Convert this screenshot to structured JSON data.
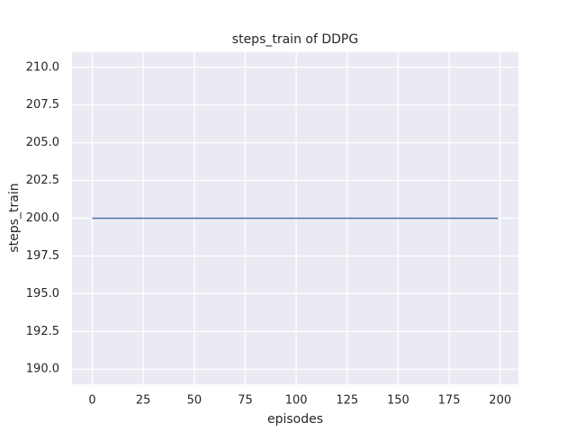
{
  "chart_data": {
    "type": "line",
    "title": "steps_train of DDPG",
    "xlabel": "episodes",
    "ylabel": "steps_train",
    "x": [
      0,
      1,
      2,
      3,
      4,
      5,
      6,
      7,
      8,
      9,
      10,
      11,
      12,
      13,
      14,
      15,
      16,
      17,
      18,
      19,
      20,
      21,
      22,
      23,
      24,
      25,
      26,
      27,
      28,
      29,
      30,
      31,
      32,
      33,
      34,
      35,
      36,
      37,
      38,
      39,
      40,
      41,
      42,
      43,
      44,
      45,
      46,
      47,
      48,
      49,
      50,
      51,
      52,
      53,
      54,
      55,
      56,
      57,
      58,
      59,
      60,
      61,
      62,
      63,
      64,
      65,
      66,
      67,
      68,
      69,
      70,
      71,
      72,
      73,
      74,
      75,
      76,
      77,
      78,
      79,
      80,
      81,
      82,
      83,
      84,
      85,
      86,
      87,
      88,
      89,
      90,
      91,
      92,
      93,
      94,
      95,
      96,
      97,
      98,
      99,
      100,
      101,
      102,
      103,
      104,
      105,
      106,
      107,
      108,
      109,
      110,
      111,
      112,
      113,
      114,
      115,
      116,
      117,
      118,
      119,
      120,
      121,
      122,
      123,
      124,
      125,
      126,
      127,
      128,
      129,
      130,
      131,
      132,
      133,
      134,
      135,
      136,
      137,
      138,
      139,
      140,
      141,
      142,
      143,
      144,
      145,
      146,
      147,
      148,
      149,
      150,
      151,
      152,
      153,
      154,
      155,
      156,
      157,
      158,
      159,
      160,
      161,
      162,
      163,
      164,
      165,
      166,
      167,
      168,
      169,
      170,
      171,
      172,
      173,
      174,
      175,
      176,
      177,
      178,
      179,
      180,
      181,
      182,
      183,
      184,
      185,
      186,
      187,
      188,
      189,
      190,
      191,
      192,
      193,
      194,
      195,
      196,
      197,
      198,
      199
    ],
    "series": [
      {
        "color": "#4c72b0",
        "values": [
          200,
          200,
          200,
          200,
          200,
          200,
          200,
          200,
          200,
          200,
          200,
          200,
          200,
          200,
          200,
          200,
          200,
          200,
          200,
          200,
          200,
          200,
          200,
          200,
          200,
          200,
          200,
          200,
          200,
          200,
          200,
          200,
          200,
          200,
          200,
          200,
          200,
          200,
          200,
          200,
          200,
          200,
          200,
          200,
          200,
          200,
          200,
          200,
          200,
          200,
          200,
          200,
          200,
          200,
          200,
          200,
          200,
          200,
          200,
          200,
          200,
          200,
          200,
          200,
          200,
          200,
          200,
          200,
          200,
          200,
          200,
          200,
          200,
          200,
          200,
          200,
          200,
          200,
          200,
          200,
          200,
          200,
          200,
          200,
          200,
          200,
          200,
          200,
          200,
          200,
          200,
          200,
          200,
          200,
          200,
          200,
          200,
          200,
          200,
          200,
          200,
          200,
          200,
          200,
          200,
          200,
          200,
          200,
          200,
          200,
          200,
          200,
          200,
          200,
          200,
          200,
          200,
          200,
          200,
          200,
          200,
          200,
          200,
          200,
          200,
          200,
          200,
          200,
          200,
          200,
          200,
          200,
          200,
          200,
          200,
          200,
          200,
          200,
          200,
          200,
          200,
          200,
          200,
          200,
          200,
          200,
          200,
          200,
          200,
          200,
          200,
          200,
          200,
          200,
          200,
          200,
          200,
          200,
          200,
          200,
          200,
          200,
          200,
          200,
          200,
          200,
          200,
          200,
          200,
          200,
          200,
          200,
          200,
          200,
          200,
          200,
          200,
          200,
          200,
          200,
          200,
          200,
          200,
          200,
          200,
          200,
          200,
          200,
          200,
          200,
          200,
          200,
          200,
          200,
          200,
          200,
          200,
          200,
          200,
          200
        ]
      }
    ],
    "xlim": [
      -9.95,
      208.95
    ],
    "xticks": [
      0,
      25,
      50,
      75,
      100,
      125,
      150,
      175,
      200
    ],
    "ylim": [
      189,
      211
    ],
    "yticks": [
      {
        "value": 190,
        "label": "190.0"
      },
      {
        "value": 192.5,
        "label": "192.5"
      },
      {
        "value": 195,
        "label": "195.0"
      },
      {
        "value": 197.5,
        "label": "197.5"
      },
      {
        "value": 200,
        "label": "200.0"
      },
      {
        "value": 202.5,
        "label": "202.5"
      },
      {
        "value": 205,
        "label": "205.0"
      },
      {
        "value": 207.5,
        "label": "207.5"
      },
      {
        "value": 210,
        "label": "210.0"
      }
    ],
    "grid": true
  }
}
